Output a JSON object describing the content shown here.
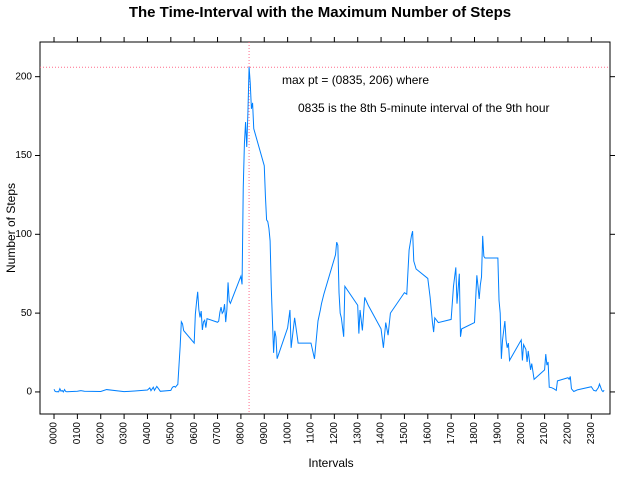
{
  "chart_data": {
    "type": "line",
    "title": "The Time-Interval with the Maximum Number of Steps",
    "x_label": "Intervals",
    "y_label": "Number of Steps",
    "annotations": [
      "max pt = (0835, 206) where",
      "0835 is the 8th 5-minute interval of the 9th hour"
    ],
    "max_point": {
      "x": 835,
      "y": 206
    },
    "reference_color": "#ff6b8a",
    "color": "#0080ff",
    "x": [
      0,
      5,
      10,
      15,
      20,
      25,
      30,
      35,
      40,
      45,
      50,
      55,
      100,
      115,
      130,
      200,
      225,
      300,
      345,
      400,
      410,
      415,
      425,
      430,
      440,
      450,
      455,
      500,
      505,
      510,
      515,
      520,
      525,
      530,
      535,
      540,
      545,
      550,
      555,
      600,
      605,
      610,
      615,
      620,
      625,
      630,
      635,
      640,
      645,
      650,
      655,
      700,
      705,
      710,
      715,
      720,
      725,
      730,
      735,
      740,
      745,
      750,
      755,
      800,
      805,
      810,
      815,
      820,
      825,
      830,
      835,
      840,
      845,
      850,
      855,
      900,
      905,
      910,
      915,
      920,
      925,
      930,
      935,
      940,
      945,
      950,
      955,
      1000,
      1010,
      1015,
      1030,
      1045,
      1100,
      1115,
      1130,
      1140,
      1145,
      1155,
      1205,
      1210,
      1215,
      1220,
      1225,
      1230,
      1240,
      1245,
      1300,
      1305,
      1310,
      1320,
      1330,
      1345,
      1400,
      1410,
      1420,
      1430,
      1440,
      1500,
      1510,
      1520,
      1530,
      1535,
      1540,
      1550,
      1600,
      1610,
      1620,
      1625,
      1630,
      1645,
      1700,
      1710,
      1720,
      1725,
      1735,
      1740,
      1745,
      1800,
      1810,
      1815,
      1820,
      1825,
      1830,
      1835,
      1840,
      1845,
      1900,
      1905,
      1910,
      1915,
      1920,
      1930,
      1935,
      1940,
      1945,
      1950,
      2000,
      2005,
      2010,
      2020,
      2025,
      2030,
      2040,
      2045,
      2055,
      2100,
      2105,
      2110,
      2115,
      2120,
      2130,
      2140,
      2150,
      2155,
      2200,
      2205,
      2210,
      2215,
      2225,
      2240,
      2300,
      2310,
      2320,
      2330,
      2335,
      2340,
      2345,
      2350,
      2355
    ],
    "values": [
      1.7,
      0.3,
      0.1,
      0.2,
      0.1,
      2.1,
      0.5,
      0.9,
      0,
      1.5,
      0.3,
      0.1,
      0.4,
      0.8,
      0.4,
      0.3,
      1.5,
      0.2,
      0.6,
      1.2,
      2.6,
      0.8,
      3.0,
      1.0,
      3.5,
      1.5,
      0.4,
      1.0,
      2.5,
      3.3,
      3.5,
      3.0,
      4.0,
      4.8,
      17.0,
      28.9,
      44.5,
      43.2,
      38.9,
      31.0,
      49.3,
      56.9,
      63.5,
      52.2,
      47.3,
      51.3,
      39.3,
      44.5,
      45.5,
      40.8,
      46.5,
      44.2,
      44.9,
      50.5,
      53.8,
      49.9,
      51.0,
      55.7,
      44.3,
      52.3,
      69.5,
      57.8,
      56.2,
      73.4,
      68.2,
      129.4,
      157.5,
      171.2,
      155.4,
      177.3,
      206.2,
      195.9,
      179.6,
      183.4,
      167.0,
      143.5,
      124.0,
      109.1,
      108.1,
      103.7,
      95.9,
      66.2,
      45.2,
      24.8,
      38.8,
      35.0,
      21.1,
      40.6,
      52.0,
      28.0,
      47.0,
      31.0,
      31.0,
      21.0,
      45.0,
      52.0,
      56.0,
      62.0,
      87.0,
      95.0,
      93.0,
      63.0,
      50.0,
      47.0,
      35.0,
      67.0,
      55.0,
      37.0,
      52.0,
      39.0,
      60.0,
      55.0,
      40.0,
      28.0,
      44.0,
      36.0,
      50.0,
      63.0,
      62.0,
      90.0,
      99.0,
      102.0,
      83.0,
      78.0,
      72.0,
      60.0,
      44.0,
      38.0,
      47.0,
      44.0,
      46.0,
      67.0,
      79.0,
      56.0,
      75.0,
      35.0,
      40.0,
      44.0,
      74.0,
      67.0,
      59.0,
      68.0,
      73.0,
      99.0,
      86.0,
      85.0,
      85.0,
      58.0,
      50.0,
      21.0,
      33.0,
      45.0,
      33.0,
      28.0,
      31.0,
      20.0,
      33.0,
      20.0,
      30.0,
      27.0,
      19.0,
      26.0,
      14.0,
      18.0,
      8.0,
      14.0,
      24.0,
      17.0,
      19.0,
      3.0,
      2.7,
      2.0,
      1.0,
      7.0,
      9.0,
      8.0,
      9.8,
      2.0,
      0.3,
      1.3,
      3.3,
      1.0,
      0.6,
      2.7,
      5.0,
      3.0,
      1.0,
      0.2,
      1.1
    ],
    "xlim": [
      -60,
      2380
    ],
    "ylim": [
      -14,
      222
    ],
    "yticks": [
      0,
      50,
      100,
      150,
      200
    ],
    "xticks": [
      {
        "value": 0,
        "label": "0000"
      },
      {
        "value": 100,
        "label": "0100"
      },
      {
        "value": 200,
        "label": "0200"
      },
      {
        "value": 300,
        "label": "0300"
      },
      {
        "value": 400,
        "label": "0400"
      },
      {
        "value": 500,
        "label": "0500"
      },
      {
        "value": 600,
        "label": "0600"
      },
      {
        "value": 700,
        "label": "0700"
      },
      {
        "value": 800,
        "label": "0800"
      },
      {
        "value": 900,
        "label": "0900"
      },
      {
        "value": 1000,
        "label": "1000"
      },
      {
        "value": 1100,
        "label": "1100"
      },
      {
        "value": 1200,
        "label": "1200"
      },
      {
        "value": 1300,
        "label": "1300"
      },
      {
        "value": 1400,
        "label": "1400"
      },
      {
        "value": 1500,
        "label": "1500"
      },
      {
        "value": 1600,
        "label": "1600"
      },
      {
        "value": 1700,
        "label": "1700"
      },
      {
        "value": 1800,
        "label": "1800"
      },
      {
        "value": 1900,
        "label": "1900"
      },
      {
        "value": 2000,
        "label": "2000"
      },
      {
        "value": 2100,
        "label": "2100"
      },
      {
        "value": 2200,
        "label": "2200"
      },
      {
        "value": 2300,
        "label": "2300"
      }
    ]
  }
}
